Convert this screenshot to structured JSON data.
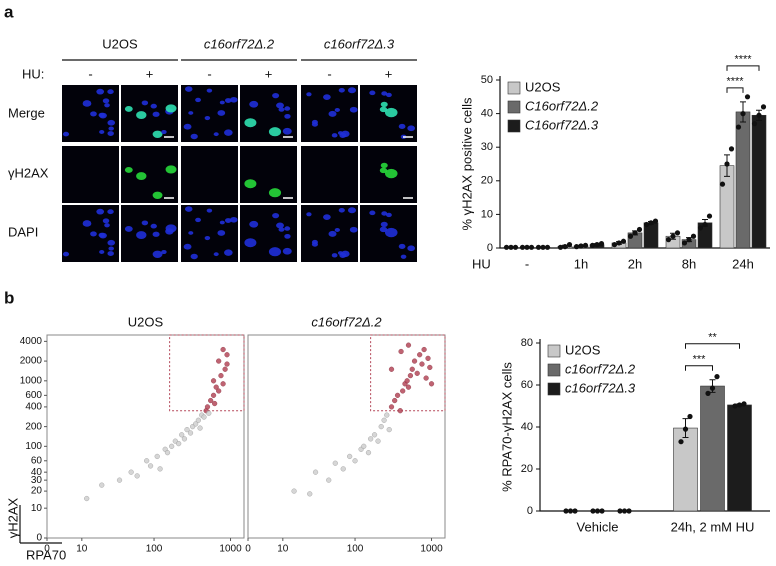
{
  "figure": {
    "panel_a": "a",
    "panel_b": "b",
    "hu_label": "HU:",
    "columns": [
      {
        "title": "U2OS",
        "conditions": [
          "-",
          "+"
        ]
      },
      {
        "title": "c16orf72Δ.2",
        "conditions": [
          "-",
          "+"
        ]
      },
      {
        "title": "c16orf72Δ.3",
        "conditions": [
          "-",
          "+"
        ]
      }
    ],
    "rows": [
      "Merge",
      "γH2AX",
      "DAPI"
    ],
    "scatter_ylabel": "γH2AX",
    "scatter_xlabel": "RPA70"
  },
  "chart_data": [
    {
      "type": "bar",
      "ylabel": "% γH2AX positive cells",
      "xlabel": "HU",
      "categories": [
        "-",
        "1h",
        "2h",
        "8h",
        "24h"
      ],
      "series": [
        {
          "name": "U2OS",
          "color": "#c8c8c8",
          "values": [
            0.2,
            0.5,
            1.5,
            3.5,
            24.5
          ],
          "errors": [
            0.1,
            0.3,
            0.4,
            0.9,
            3.2
          ],
          "points": [
            [
              0.2,
              0.2,
              0.2
            ],
            [
              0.2,
              0.4,
              1.0
            ],
            [
              1.0,
              1.5,
              2.0
            ],
            [
              2.5,
              3.5,
              4.5
            ],
            [
              19.0,
              25.0,
              29.5
            ]
          ]
        },
        {
          "name": "C16orf72Δ.2",
          "color": "#6a6a6a",
          "values": [
            0.2,
            0.6,
            4.5,
            2.5,
            40.5
          ],
          "errors": [
            0.1,
            0.2,
            0.6,
            0.6,
            3.0
          ],
          "points": [
            [
              0.2,
              0.2,
              0.2
            ],
            [
              0.4,
              0.6,
              0.8
            ],
            [
              3.5,
              4.5,
              5.5
            ],
            [
              1.5,
              2.5,
              3.5
            ],
            [
              36.0,
              40.0,
              45.0
            ]
          ]
        },
        {
          "name": "C16orf72Δ.3",
          "color": "#1c1c1c",
          "values": [
            0.2,
            1.0,
            7.5,
            7.5,
            39.5
          ],
          "errors": [
            0.1,
            0.3,
            0.4,
            1.0,
            1.5
          ],
          "points": [
            [
              0.2,
              0.2,
              0.2
            ],
            [
              0.8,
              1.0,
              1.3
            ],
            [
              7.0,
              7.5,
              8.0
            ],
            [
              6.0,
              7.0,
              9.5
            ],
            [
              37.0,
              39.5,
              42.0
            ]
          ]
        }
      ],
      "ylim": [
        0,
        50
      ],
      "yticks": [
        0,
        10,
        20,
        30,
        40,
        50
      ],
      "legend": "top-left",
      "significance": [
        {
          "label": "****",
          "category": 4,
          "from": 0,
          "to": 1
        },
        {
          "label": "****",
          "category": 4,
          "from": 0,
          "to": 2
        }
      ]
    },
    {
      "type": "scatter",
      "title": "U2OS",
      "xscale": "asinh",
      "yscale": "asinh",
      "x": [
        12,
        20,
        35,
        50,
        60,
        80,
        90,
        110,
        120,
        140,
        150,
        170,
        190,
        210,
        230,
        250,
        270,
        300,
        320,
        350,
        380,
        400,
        420,
        450,
        480,
        500,
        520,
        550,
        600,
        620,
        650,
        700,
        750,
        800,
        850,
        900,
        700,
        800,
        600,
        900
      ],
      "y": [
        15,
        25,
        30,
        40,
        35,
        60,
        50,
        70,
        45,
        90,
        80,
        100,
        120,
        110,
        150,
        130,
        180,
        160,
        200,
        220,
        250,
        190,
        300,
        280,
        350,
        400,
        320,
        500,
        600,
        450,
        800,
        700,
        1200,
        900,
        1500,
        2500,
        2000,
        3000,
        1000,
        1800
      ],
      "xlim": [
        0,
        1500
      ],
      "ylim": [
        0,
        5000
      ],
      "xticks": [
        0,
        10,
        100,
        1000
      ],
      "yticks": [
        0,
        10,
        20,
        30,
        40,
        60,
        100,
        200,
        400,
        600,
        1000,
        2000,
        4000
      ],
      "point_color": "#cfcfcf",
      "gate_color": "#b5485a",
      "gate": {
        "x": [
          160,
          1500
        ],
        "y": [
          350,
          5000
        ]
      }
    },
    {
      "type": "scatter",
      "title": "c16orf72Δ.2",
      "xscale": "asinh",
      "yscale": "asinh",
      "x": [
        15,
        25,
        30,
        45,
        55,
        70,
        85,
        100,
        120,
        130,
        150,
        160,
        180,
        200,
        220,
        240,
        260,
        280,
        300,
        330,
        360,
        390,
        420,
        450,
        480,
        500,
        530,
        560,
        600,
        650,
        700,
        750,
        800,
        850,
        900,
        950,
        300,
        400,
        500,
        1000
      ],
      "y": [
        20,
        18,
        40,
        30,
        55,
        45,
        70,
        60,
        90,
        100,
        80,
        130,
        150,
        120,
        200,
        250,
        300,
        180,
        400,
        500,
        600,
        350,
        700,
        900,
        1000,
        800,
        1200,
        1500,
        2000,
        1300,
        2500,
        1800,
        3000,
        1100,
        2200,
        1600,
        1500,
        2800,
        3500,
        900
      ],
      "xlim": [
        0,
        1500
      ],
      "ylim": [
        0,
        5000
      ],
      "xticks": [
        0,
        10,
        100,
        1000
      ],
      "point_color": "#cfcfcf",
      "gate_color": "#b5485a",
      "gate": {
        "x": [
          160,
          1500
        ],
        "y": [
          350,
          5000
        ]
      }
    },
    {
      "type": "bar",
      "ylabel": "% RPA70-γH2AX cells",
      "categories": [
        "Vehicle",
        "24h, 2 mM HU"
      ],
      "series": [
        {
          "name": "U2OS",
          "color": "#c8c8c8",
          "values": [
            0,
            39.5
          ],
          "errors": [
            0,
            4.5
          ],
          "points": [
            [
              0,
              0,
              0
            ],
            [
              33.0,
              39.0,
              45.0
            ]
          ]
        },
        {
          "name": "c16orf72Δ.2",
          "color": "#6a6a6a",
          "values": [
            0,
            59.5
          ],
          "errors": [
            0,
            3.0
          ],
          "points": [
            [
              0,
              0,
              0
            ],
            [
              56.0,
              58.5,
              64.0
            ]
          ]
        },
        {
          "name": "c16orf72Δ.3",
          "color": "#1c1c1c",
          "values": [
            0,
            50.5
          ],
          "errors": [
            0,
            0.5
          ],
          "points": [
            [
              0,
              0,
              0
            ],
            [
              50.0,
              50.5,
              51.0
            ]
          ]
        }
      ],
      "ylim": [
        0,
        80
      ],
      "yticks": [
        0,
        20,
        40,
        60,
        80
      ],
      "legend": "top-left",
      "significance": [
        {
          "label": "***",
          "category": 1,
          "from": 0,
          "to": 1
        },
        {
          "label": "**",
          "category": 1,
          "from": 0,
          "to": 2
        }
      ]
    }
  ]
}
